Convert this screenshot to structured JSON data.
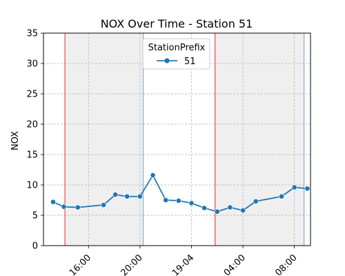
{
  "chart_data": {
    "type": "line",
    "title": "NOX  Over Time - Station 51",
    "xlabel": "",
    "ylabel": "NOX",
    "ylim": [
      0,
      35
    ],
    "yticks": [
      0,
      5,
      10,
      15,
      20,
      25,
      30,
      35
    ],
    "grid": true,
    "legend": {
      "title": "StationPrefix",
      "placement": "top-center"
    },
    "xlim": [
      "2024-04-18T12:30",
      "2024-04-19T09:15"
    ],
    "xticks": [
      {
        "t": "2024-04-18T16:00",
        "label": "16:00"
      },
      {
        "t": "2024-04-18T20:00",
        "label": "20:00"
      },
      {
        "t": "2024-04-19T00:00",
        "label": "19-04"
      },
      {
        "t": "2024-04-19T04:00",
        "label": "04:00"
      },
      {
        "t": "2024-04-19T08:00",
        "label": "08:00"
      }
    ],
    "shaded_periods": [
      {
        "start": "2024-04-18T14:10",
        "end": "2024-04-18T20:15"
      },
      {
        "start": "2024-04-19T01:50",
        "end": "2024-04-19T08:45"
      }
    ],
    "vlines": [
      {
        "t": "2024-04-18T14:10",
        "color": "#e8474f"
      },
      {
        "t": "2024-04-18T20:15",
        "color": "#7faed6"
      },
      {
        "t": "2024-04-19T01:50",
        "color": "#e8474f"
      },
      {
        "t": "2024-04-19T08:45",
        "color": "#7faed6"
      }
    ],
    "series": [
      {
        "name": "51",
        "color": "#1f77b4",
        "points": [
          {
            "x": "2024-04-18T13:15",
            "y": 7.2
          },
          {
            "x": "2024-04-18T14:05",
            "y": 6.4
          },
          {
            "x": "2024-04-18T15:10",
            "y": 6.3
          },
          {
            "x": "2024-04-18T17:10",
            "y": 6.7
          },
          {
            "x": "2024-04-18T18:05",
            "y": 8.4
          },
          {
            "x": "2024-04-18T19:00",
            "y": 8.1
          },
          {
            "x": "2024-04-18T20:00",
            "y": 8.1
          },
          {
            "x": "2024-04-18T21:00",
            "y": 11.6
          },
          {
            "x": "2024-04-18T22:00",
            "y": 7.5
          },
          {
            "x": "2024-04-18T23:00",
            "y": 7.4
          },
          {
            "x": "2024-04-19T00:00",
            "y": 7.0
          },
          {
            "x": "2024-04-19T01:00",
            "y": 6.2
          },
          {
            "x": "2024-04-19T02:00",
            "y": 5.6
          },
          {
            "x": "2024-04-19T03:00",
            "y": 6.3
          },
          {
            "x": "2024-04-19T04:00",
            "y": 5.8
          },
          {
            "x": "2024-04-19T05:00",
            "y": 7.3
          },
          {
            "x": "2024-04-19T07:00",
            "y": 8.1
          },
          {
            "x": "2024-04-19T08:00",
            "y": 9.6
          },
          {
            "x": "2024-04-19T09:00",
            "y": 9.4
          }
        ]
      }
    ]
  }
}
